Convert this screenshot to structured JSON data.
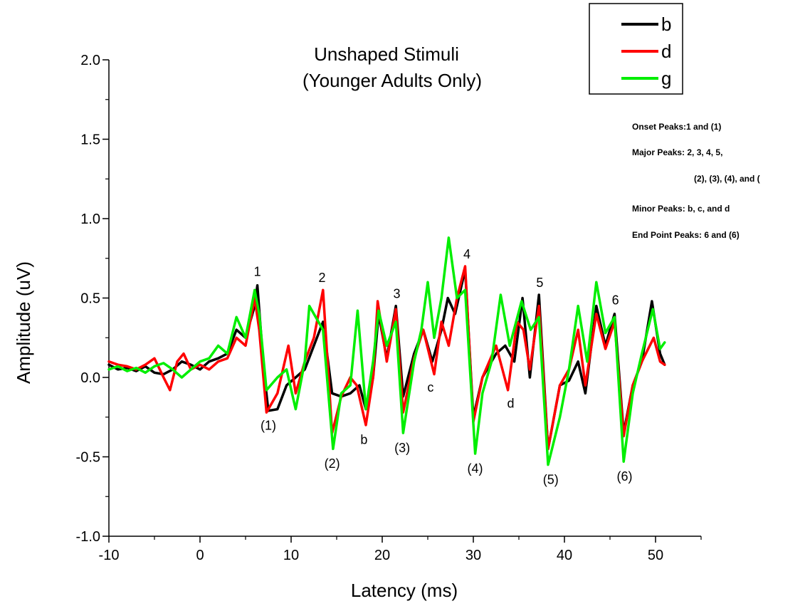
{
  "chart_data": {
    "type": "line",
    "title_lines": [
      "Unshaped Stimuli",
      "(Younger Adults Only)"
    ],
    "xlabel": "Latency (ms)",
    "ylabel": "Amplitude (uV)",
    "xlim": [
      -10,
      55
    ],
    "ylim": [
      -1.0,
      2.0
    ],
    "x_ticks": [
      -10,
      0,
      10,
      20,
      30,
      40,
      50
    ],
    "y_ticks": [
      -1.0,
      -0.5,
      0.0,
      0.5,
      1.0,
      1.5,
      2.0
    ],
    "x_tick_labels": [
      "-10",
      "0",
      "10",
      "20",
      "30",
      "40",
      "50"
    ],
    "y_tick_labels": [
      "-1.0",
      "-0.5",
      "0.0",
      "0.5",
      "1.0",
      "1.5",
      "2.0"
    ],
    "grid": false,
    "legend_position": "top-right",
    "series": [
      {
        "name": "b",
        "color": "#000000",
        "points": [
          [
            -10,
            0.08
          ],
          [
            -9,
            0.05
          ],
          [
            -8,
            0.06
          ],
          [
            -7,
            0.04
          ],
          [
            -6,
            0.07
          ],
          [
            -5,
            0.03
          ],
          [
            -4,
            0.02
          ],
          [
            -3,
            0.05
          ],
          [
            -2,
            0.1
          ],
          [
            -1,
            0.08
          ],
          [
            0,
            0.05
          ],
          [
            1,
            0.1
          ],
          [
            2,
            0.12
          ],
          [
            3,
            0.15
          ],
          [
            4,
            0.3
          ],
          [
            5,
            0.25
          ],
          [
            6,
            0.45
          ],
          [
            6.3,
            0.58
          ],
          [
            7,
            0.05
          ],
          [
            7.5,
            -0.21
          ],
          [
            8.5,
            -0.2
          ],
          [
            9.5,
            -0.05
          ],
          [
            10.5,
            0.0
          ],
          [
            11.5,
            0.05
          ],
          [
            12.5,
            0.2
          ],
          [
            13.5,
            0.35
          ],
          [
            14.5,
            -0.1
          ],
          [
            15.5,
            -0.12
          ],
          [
            16.5,
            -0.1
          ],
          [
            17.5,
            -0.05
          ],
          [
            18.2,
            -0.2
          ],
          [
            19,
            0.0
          ],
          [
            19.6,
            0.4
          ],
          [
            20.5,
            0.12
          ],
          [
            21.5,
            0.45
          ],
          [
            22.3,
            -0.12
          ],
          [
            23.5,
            0.15
          ],
          [
            24.5,
            0.3
          ],
          [
            25.5,
            0.1
          ],
          [
            26.5,
            0.3
          ],
          [
            27.2,
            0.5
          ],
          [
            28,
            0.4
          ],
          [
            29.1,
            0.68
          ],
          [
            30,
            -0.25
          ],
          [
            31,
            0.0
          ],
          [
            32.5,
            0.15
          ],
          [
            33.5,
            0.2
          ],
          [
            34.5,
            0.1
          ],
          [
            35.4,
            0.5
          ],
          [
            36.2,
            0.0
          ],
          [
            37.2,
            0.52
          ],
          [
            38.2,
            -0.45
          ],
          [
            39.5,
            -0.05
          ],
          [
            40.5,
            -0.02
          ],
          [
            41.5,
            0.1
          ],
          [
            42.3,
            -0.1
          ],
          [
            43.5,
            0.45
          ],
          [
            44.5,
            0.2
          ],
          [
            45.5,
            0.4
          ],
          [
            46.5,
            -0.35
          ],
          [
            47.5,
            -0.05
          ],
          [
            48.5,
            0.1
          ],
          [
            49.6,
            0.48
          ],
          [
            50.5,
            0.15
          ],
          [
            51,
            0.08
          ]
        ]
      },
      {
        "name": "d",
        "color": "#ff0000",
        "points": [
          [
            -10,
            0.1
          ],
          [
            -9,
            0.08
          ],
          [
            -8,
            0.07
          ],
          [
            -7,
            0.05
          ],
          [
            -6,
            0.08
          ],
          [
            -5,
            0.12
          ],
          [
            -4,
            0.0
          ],
          [
            -3.3,
            -0.08
          ],
          [
            -2.5,
            0.1
          ],
          [
            -1.8,
            0.15
          ],
          [
            -1,
            0.05
          ],
          [
            0,
            0.08
          ],
          [
            1,
            0.05
          ],
          [
            2,
            0.1
          ],
          [
            3,
            0.12
          ],
          [
            4,
            0.25
          ],
          [
            5,
            0.2
          ],
          [
            6,
            0.5
          ],
          [
            6.5,
            0.3
          ],
          [
            7.3,
            -0.22
          ],
          [
            8.5,
            -0.1
          ],
          [
            9.7,
            0.2
          ],
          [
            10.5,
            -0.1
          ],
          [
            11.5,
            0.1
          ],
          [
            12.5,
            0.25
          ],
          [
            13.5,
            0.55
          ],
          [
            14.5,
            -0.35
          ],
          [
            15.5,
            -0.12
          ],
          [
            16.5,
            0.0
          ],
          [
            17.2,
            -0.05
          ],
          [
            18.2,
            -0.3
          ],
          [
            19,
            0.0
          ],
          [
            19.5,
            0.48
          ],
          [
            20.5,
            0.1
          ],
          [
            21.5,
            0.43
          ],
          [
            22.3,
            -0.22
          ],
          [
            23.5,
            0.12
          ],
          [
            24.5,
            0.3
          ],
          [
            25.7,
            0.02
          ],
          [
            26.5,
            0.35
          ],
          [
            27.3,
            0.2
          ],
          [
            28.2,
            0.5
          ],
          [
            29.1,
            0.7
          ],
          [
            30,
            -0.28
          ],
          [
            31,
            0.0
          ],
          [
            32.5,
            0.2
          ],
          [
            33.8,
            -0.08
          ],
          [
            34.8,
            0.35
          ],
          [
            35.5,
            0.3
          ],
          [
            36.2,
            0.05
          ],
          [
            37.2,
            0.45
          ],
          [
            38.2,
            -0.45
          ],
          [
            39.5,
            -0.05
          ],
          [
            40.5,
            0.05
          ],
          [
            41.5,
            0.3
          ],
          [
            42.3,
            -0.05
          ],
          [
            43.5,
            0.4
          ],
          [
            44.5,
            0.18
          ],
          [
            45.5,
            0.35
          ],
          [
            46.5,
            -0.37
          ],
          [
            47.5,
            -0.05
          ],
          [
            48.5,
            0.1
          ],
          [
            49.8,
            0.25
          ],
          [
            50.5,
            0.1
          ],
          [
            51,
            0.08
          ]
        ]
      },
      {
        "name": "g",
        "color": "#00ee00",
        "points": [
          [
            -10,
            0.05
          ],
          [
            -9,
            0.07
          ],
          [
            -8,
            0.04
          ],
          [
            -7,
            0.06
          ],
          [
            -6,
            0.03
          ],
          [
            -5,
            0.07
          ],
          [
            -4,
            0.09
          ],
          [
            -3,
            0.05
          ],
          [
            -2,
            0.0
          ],
          [
            -1,
            0.05
          ],
          [
            0,
            0.1
          ],
          [
            1,
            0.12
          ],
          [
            2,
            0.2
          ],
          [
            3,
            0.15
          ],
          [
            4,
            0.38
          ],
          [
            5,
            0.25
          ],
          [
            6,
            0.55
          ],
          [
            6.5,
            0.4
          ],
          [
            7.3,
            -0.08
          ],
          [
            8.5,
            0.0
          ],
          [
            9.5,
            0.05
          ],
          [
            10.5,
            -0.2
          ],
          [
            11.5,
            0.1
          ],
          [
            12,
            0.45
          ],
          [
            13.5,
            0.3
          ],
          [
            14.6,
            -0.45
          ],
          [
            15.5,
            -0.1
          ],
          [
            16.5,
            -0.05
          ],
          [
            17.3,
            0.42
          ],
          [
            18.2,
            -0.2
          ],
          [
            19,
            0.1
          ],
          [
            19.6,
            0.42
          ],
          [
            20.5,
            0.2
          ],
          [
            21.5,
            0.35
          ],
          [
            22.3,
            -0.35
          ],
          [
            23.5,
            0.1
          ],
          [
            24.3,
            0.3
          ],
          [
            25,
            0.6
          ],
          [
            25.7,
            0.25
          ],
          [
            26.5,
            0.5
          ],
          [
            27.3,
            0.88
          ],
          [
            28.2,
            0.5
          ],
          [
            29.1,
            0.55
          ],
          [
            30.2,
            -0.48
          ],
          [
            31,
            -0.1
          ],
          [
            32,
            0.1
          ],
          [
            33,
            0.52
          ],
          [
            34,
            0.2
          ],
          [
            35.3,
            0.48
          ],
          [
            36.3,
            0.3
          ],
          [
            37.2,
            0.38
          ],
          [
            38.2,
            -0.55
          ],
          [
            39.5,
            -0.25
          ],
          [
            40.5,
            0.05
          ],
          [
            41.5,
            0.45
          ],
          [
            42.5,
            0.1
          ],
          [
            43.5,
            0.6
          ],
          [
            44.5,
            0.28
          ],
          [
            45.5,
            0.38
          ],
          [
            46.5,
            -0.53
          ],
          [
            47.5,
            -0.1
          ],
          [
            48.5,
            0.15
          ],
          [
            49.7,
            0.43
          ],
          [
            50.5,
            0.18
          ],
          [
            51,
            0.22
          ]
        ]
      }
    ],
    "peak_labels": [
      {
        "text": "1",
        "x": 6.3,
        "y": 0.64
      },
      {
        "text": "(1)",
        "x": 7.5,
        "y": -0.33
      },
      {
        "text": "2",
        "x": 13.4,
        "y": 0.6
      },
      {
        "text": "(2)",
        "x": 14.5,
        "y": -0.57
      },
      {
        "text": "b",
        "x": 18.0,
        "y": -0.42
      },
      {
        "text": "3",
        "x": 21.6,
        "y": 0.5
      },
      {
        "text": "(3)",
        "x": 22.2,
        "y": -0.47
      },
      {
        "text": "c",
        "x": 25.3,
        "y": -0.09
      },
      {
        "text": "4",
        "x": 29.3,
        "y": 0.75
      },
      {
        "text": "(4)",
        "x": 30.2,
        "y": -0.6
      },
      {
        "text": "d",
        "x": 34.1,
        "y": -0.19
      },
      {
        "text": "5",
        "x": 37.3,
        "y": 0.57
      },
      {
        "text": "(5)",
        "x": 38.5,
        "y": -0.67
      },
      {
        "text": "6",
        "x": 45.6,
        "y": 0.46
      },
      {
        "text": "(6)",
        "x": 46.6,
        "y": -0.65
      }
    ],
    "annotations": [
      "Onset Peaks:1 and (1)",
      "Major Peaks: 2, 3, 4, 5,",
      "(2), (3), (4), and (",
      "Minor Peaks: b, c, and d",
      "End Point Peaks: 6 and (6)"
    ]
  }
}
